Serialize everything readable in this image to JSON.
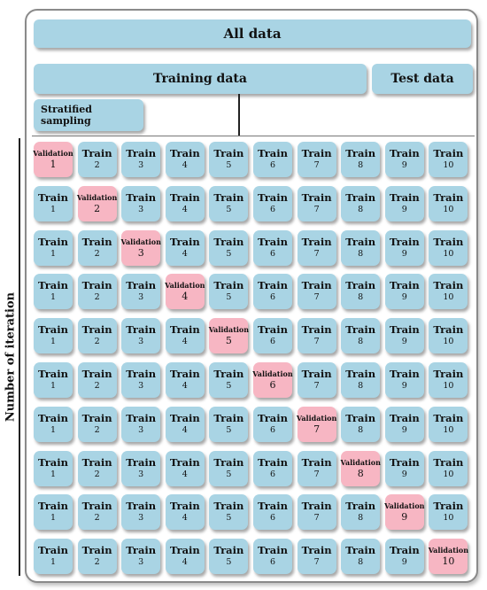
{
  "header": {
    "all_data": "All data",
    "training_data": "Training data",
    "test_data": "Test data",
    "stratified_sampling": "Stratified sampling"
  },
  "axis": {
    "label": "Number of iteration"
  },
  "folds": {
    "train_label": "Train",
    "validation_label": "Validation",
    "count": 10,
    "validation_fold_by_iteration": [
      1,
      2,
      3,
      4,
      5,
      6,
      7,
      8,
      9,
      10
    ]
  },
  "colors": {
    "train": "#a9d4e4",
    "validation": "#f7b6c3"
  }
}
